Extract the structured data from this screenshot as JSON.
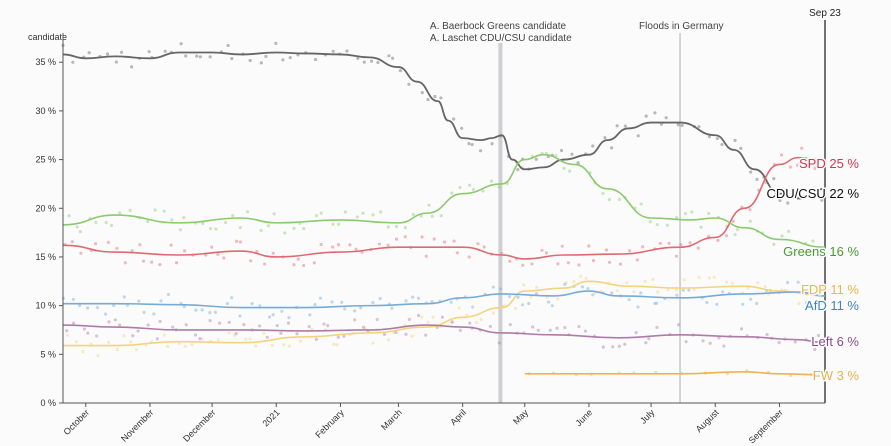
{
  "chart_data": {
    "type": "line",
    "ylabel": "candidate",
    "yunit": "%",
    "xlim": [
      "2020-09-20",
      "2021-09-23"
    ],
    "ylim": [
      0,
      38
    ],
    "yticks": [
      0,
      5,
      10,
      15,
      20,
      25,
      30,
      35
    ],
    "ytick_labels": [
      "0 %",
      "5 %",
      "10 %",
      "15 %",
      "20 %",
      "25 %",
      "30 %",
      "35 %"
    ],
    "xticks": [
      {
        "date": "2020-10-01",
        "label": "October"
      },
      {
        "date": "2020-11-01",
        "label": "November"
      },
      {
        "date": "2020-12-01",
        "label": "December"
      },
      {
        "date": "2021-01-01",
        "label": "2021"
      },
      {
        "date": "2021-02-01",
        "label": "February"
      },
      {
        "date": "2021-03-01",
        "label": "March"
      },
      {
        "date": "2021-04-01",
        "label": "April"
      },
      {
        "date": "2021-05-01",
        "label": "May"
      },
      {
        "date": "2021-06-01",
        "label": "June"
      },
      {
        "date": "2021-07-01",
        "label": "July"
      },
      {
        "date": "2021-08-01",
        "label": "August"
      },
      {
        "date": "2021-09-01",
        "label": "September"
      }
    ],
    "current_date_label": "Sep 23",
    "events": [
      {
        "date": "2021-04-19",
        "label": "A. Baerbock Greens candidate"
      },
      {
        "date": "2021-04-20",
        "label": "A. Laschet CDU/CSU candidate"
      },
      {
        "date": "2021-07-15",
        "label": "Floods in Germany"
      }
    ],
    "grid": false,
    "legend": "inline at right end of lines",
    "series": [
      {
        "name": "CDU/CSU",
        "label": "CDU/CSU",
        "value_label": "22 %",
        "color": "#666666",
        "label_color": "#111111",
        "x": [
          "2020-09-20",
          "2020-10-01",
          "2020-10-15",
          "2020-11-01",
          "2020-11-15",
          "2020-12-01",
          "2020-12-15",
          "2021-01-01",
          "2021-01-15",
          "2021-02-01",
          "2021-02-15",
          "2021-03-01",
          "2021-03-10",
          "2021-03-20",
          "2021-03-25",
          "2021-04-01",
          "2021-04-10",
          "2021-04-15",
          "2021-04-20",
          "2021-04-25",
          "2021-05-01",
          "2021-05-10",
          "2021-05-20",
          "2021-06-01",
          "2021-06-10",
          "2021-06-20",
          "2021-07-01",
          "2021-07-15",
          "2021-08-01",
          "2021-08-10",
          "2021-08-20",
          "2021-09-01",
          "2021-09-10",
          "2021-09-23"
        ],
        "values": [
          35.8,
          35.4,
          35.6,
          35.4,
          36.0,
          36.0,
          35.8,
          36.0,
          35.9,
          35.8,
          35.5,
          34.5,
          33.0,
          31.0,
          29.0,
          27.2,
          27.0,
          27.2,
          27.5,
          25.0,
          24.0,
          24.2,
          25.0,
          25.5,
          27.0,
          28.2,
          28.8,
          28.8,
          27.5,
          26.0,
          24.0,
          21.5,
          21.0,
          22.0
        ]
      },
      {
        "name": "SPD",
        "label": "SPD",
        "value_label": "25 %",
        "color": "#e06970",
        "label_color": "#d8334a",
        "x": [
          "2020-09-20",
          "2020-10-15",
          "2020-11-15",
          "2020-12-15",
          "2021-01-01",
          "2021-02-01",
          "2021-03-01",
          "2021-04-01",
          "2021-04-20",
          "2021-05-01",
          "2021-05-20",
          "2021-06-15",
          "2021-07-15",
          "2021-08-01",
          "2021-08-15",
          "2021-09-01",
          "2021-09-10",
          "2021-09-23"
        ],
        "values": [
          16.2,
          15.5,
          15.2,
          15.6,
          15.0,
          15.5,
          16.0,
          16.0,
          15.2,
          14.8,
          15.2,
          15.3,
          16.0,
          17.0,
          20.0,
          24.5,
          25.2,
          25.0
        ]
      },
      {
        "name": "Greens",
        "label": "Greens",
        "value_label": "16 %",
        "color": "#8dc96e",
        "label_color": "#4a9b2e",
        "x": [
          "2020-09-20",
          "2020-10-15",
          "2020-11-15",
          "2020-12-15",
          "2021-01-01",
          "2021-02-01",
          "2021-03-01",
          "2021-03-15",
          "2021-04-01",
          "2021-04-20",
          "2021-05-01",
          "2021-05-10",
          "2021-05-25",
          "2021-06-10",
          "2021-07-01",
          "2021-07-20",
          "2021-08-01",
          "2021-08-15",
          "2021-09-01",
          "2021-09-23"
        ],
        "values": [
          18.3,
          19.3,
          18.5,
          19.0,
          18.5,
          18.8,
          18.5,
          19.5,
          21.5,
          22.5,
          25.0,
          25.5,
          24.5,
          22.0,
          19.0,
          18.8,
          19.0,
          18.0,
          16.8,
          16.0
        ]
      },
      {
        "name": "FDP",
        "label": "FDP",
        "value_label": "11 %",
        "color": "#f5d27e",
        "label_color": "#e8b84a",
        "x": [
          "2020-09-20",
          "2020-10-15",
          "2020-11-15",
          "2020-12-15",
          "2021-01-15",
          "2021-02-15",
          "2021-03-15",
          "2021-04-01",
          "2021-04-20",
          "2021-05-01",
          "2021-05-20",
          "2021-06-01",
          "2021-06-20",
          "2021-07-15",
          "2021-08-15",
          "2021-09-01",
          "2021-09-23"
        ],
        "values": [
          5.9,
          5.9,
          6.3,
          6.2,
          6.8,
          7.2,
          7.8,
          8.8,
          9.8,
          11.5,
          11.8,
          12.5,
          12.0,
          11.8,
          12.0,
          11.5,
          11.0
        ]
      },
      {
        "name": "AfD",
        "label": "AfD",
        "value_label": "11 %",
        "color": "#77aad8",
        "label_color": "#3f83c4",
        "x": [
          "2020-09-20",
          "2020-10-15",
          "2020-11-15",
          "2020-12-15",
          "2021-01-15",
          "2021-02-15",
          "2021-03-15",
          "2021-04-01",
          "2021-04-20",
          "2021-05-15",
          "2021-06-01",
          "2021-06-15",
          "2021-07-15",
          "2021-08-15",
          "2021-09-10",
          "2021-09-23"
        ],
        "values": [
          10.2,
          10.2,
          10.1,
          9.8,
          9.8,
          10.0,
          10.2,
          10.8,
          11.2,
          11.0,
          11.5,
          11.0,
          10.8,
          11.2,
          11.4,
          11.0
        ]
      },
      {
        "name": "Left",
        "label": "Left",
        "value_label": "6 %",
        "color": "#b07aa8",
        "label_color": "#8e4a86",
        "x": [
          "2020-09-20",
          "2020-10-15",
          "2020-11-15",
          "2020-12-15",
          "2021-01-15",
          "2021-02-15",
          "2021-03-15",
          "2021-04-01",
          "2021-04-20",
          "2021-05-15",
          "2021-06-15",
          "2021-07-15",
          "2021-08-15",
          "2021-09-10",
          "2021-09-23"
        ],
        "values": [
          8.0,
          7.8,
          7.5,
          7.5,
          7.4,
          7.5,
          8.0,
          7.8,
          7.2,
          7.0,
          6.7,
          7.0,
          6.8,
          6.5,
          6.2
        ]
      },
      {
        "name": "FW",
        "label": "FW",
        "value_label": "3 %",
        "color": "#f2b24c",
        "label_color": "#eab14a",
        "x": [
          "2021-05-01",
          "2021-06-15",
          "2021-07-15",
          "2021-08-15",
          "2021-09-01",
          "2021-09-23"
        ],
        "values": [
          3.0,
          3.0,
          3.0,
          3.2,
          3.0,
          2.9
        ]
      }
    ]
  }
}
